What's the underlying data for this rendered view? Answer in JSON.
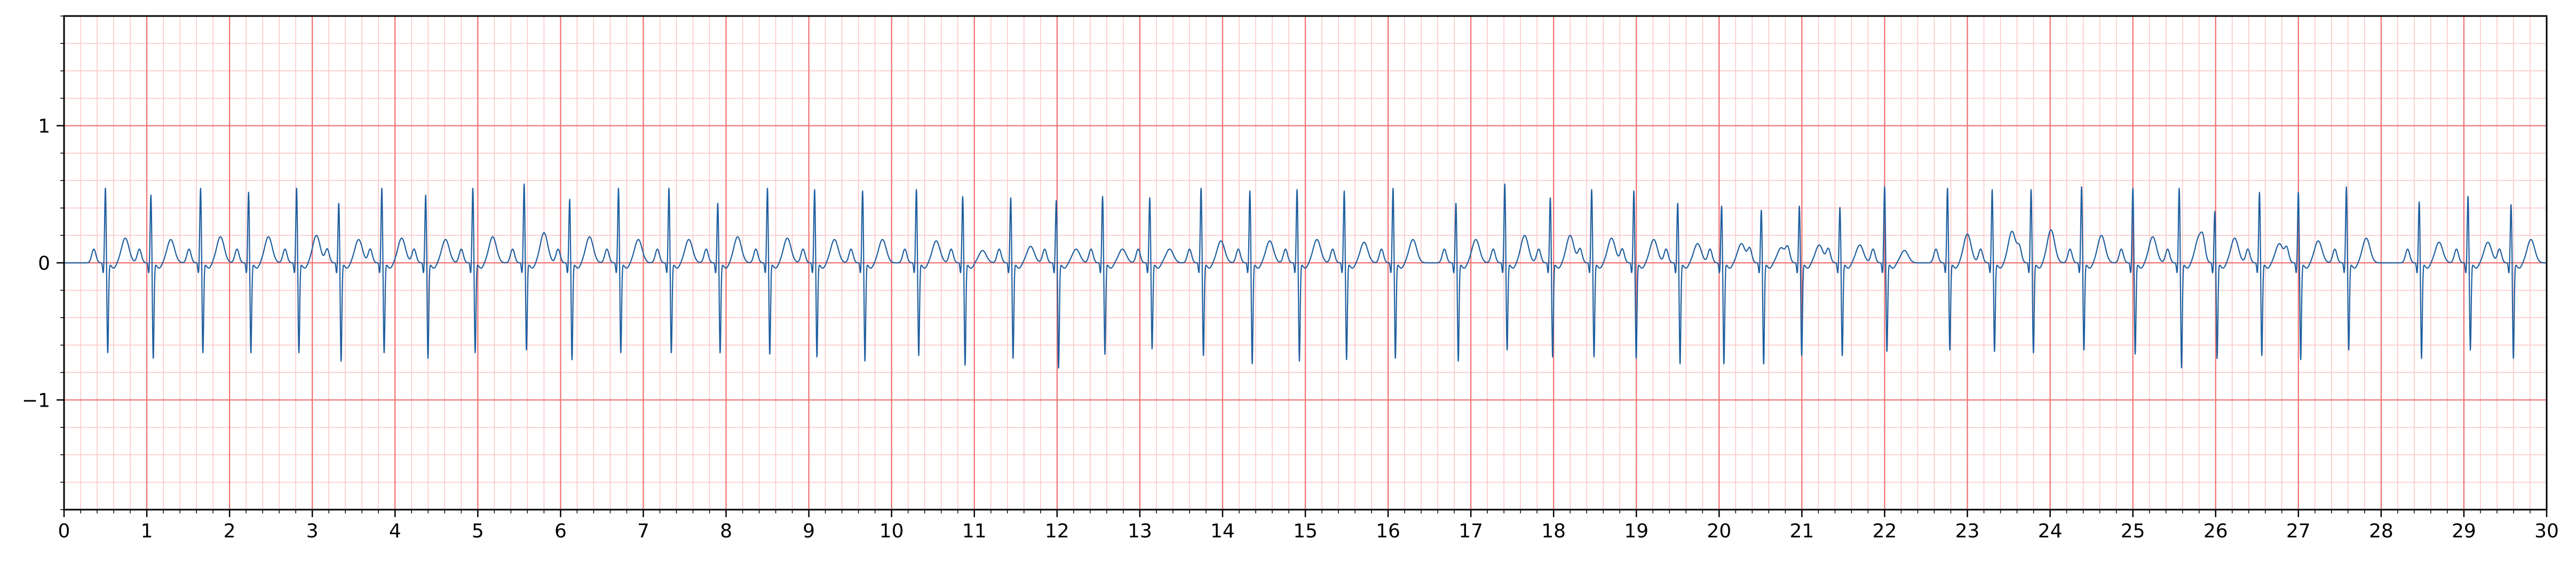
{
  "colors": {
    "major_grid": "#f07070",
    "minor_grid": "#fcc4c4",
    "trace": "#1f5f9f",
    "axis": "#000000",
    "background": "#ffffff"
  },
  "chart_data": {
    "type": "line",
    "title": "",
    "xlabel": "",
    "ylabel": "",
    "xlim": [
      0,
      30
    ],
    "ylim": [
      -1.8,
      1.8
    ],
    "grid": true,
    "major_grid_x": 1,
    "major_grid_y": 1,
    "minor_grid_x": 0.2,
    "minor_grid_y": 0.2,
    "x_ticks": [
      0,
      1,
      2,
      3,
      4,
      5,
      6,
      7,
      8,
      9,
      10,
      11,
      12,
      13,
      14,
      15,
      16,
      17,
      18,
      19,
      20,
      21,
      22,
      23,
      24,
      25,
      26,
      27,
      28,
      29,
      30
    ],
    "x_tick_labels": [
      "0",
      "1",
      "2",
      "3",
      "4",
      "5",
      "6",
      "7",
      "8",
      "9",
      "10",
      "11",
      "12",
      "13",
      "14",
      "15",
      "16",
      "17",
      "18",
      "19",
      "20",
      "21",
      "22",
      "23",
      "24",
      "25",
      "26",
      "27",
      "28",
      "29",
      "30"
    ],
    "y_ticks": [
      -1,
      0,
      1
    ],
    "y_tick_labels": [
      "−1",
      "0",
      "1"
    ],
    "series": [
      {
        "beat_times_s": [
          0.5,
          1.05,
          1.65,
          2.23,
          2.81,
          3.32,
          3.84,
          4.37,
          4.94,
          5.56,
          6.11,
          6.7,
          7.31,
          7.9,
          8.5,
          9.07,
          9.65,
          10.3,
          10.86,
          11.44,
          11.99,
          12.55,
          13.12,
          13.74,
          14.33,
          14.9,
          15.47,
          16.06,
          16.82,
          17.41,
          17.96,
          18.46,
          18.97,
          19.5,
          20.03,
          20.51,
          20.97,
          21.46,
          22.0,
          22.76,
          23.3,
          23.77,
          24.38,
          25.0,
          25.56,
          25.99,
          26.53,
          27.0,
          27.58,
          28.46,
          29.05,
          29.57
        ],
        "r_peak_mv": [
          0.55,
          0.5,
          0.55,
          0.52,
          0.55,
          0.44,
          0.55,
          0.5,
          0.55,
          0.58,
          0.47,
          0.55,
          0.55,
          0.44,
          0.55,
          0.54,
          0.53,
          0.54,
          0.49,
          0.48,
          0.46,
          0.49,
          0.48,
          0.55,
          0.53,
          0.54,
          0.53,
          0.55,
          0.44,
          0.58,
          0.48,
          0.54,
          0.53,
          0.44,
          0.42,
          0.39,
          0.42,
          0.41,
          0.56,
          0.55,
          0.54,
          0.54,
          0.56,
          0.55,
          0.55,
          0.38,
          0.52,
          0.52,
          0.56,
          0.45,
          0.49,
          0.43
        ],
        "s_trough_mv": [
          -0.66,
          -0.7,
          -0.66,
          -0.66,
          -0.66,
          -0.72,
          -0.66,
          -0.7,
          -0.66,
          -0.64,
          -0.71,
          -0.66,
          -0.66,
          -0.66,
          -0.67,
          -0.69,
          -0.72,
          -0.68,
          -0.75,
          -0.7,
          -0.77,
          -0.67,
          -0.63,
          -0.68,
          -0.74,
          -0.72,
          -0.71,
          -0.7,
          -0.72,
          -0.64,
          -0.69,
          -0.69,
          -0.7,
          -0.74,
          -0.74,
          -0.74,
          -0.68,
          -0.68,
          -0.65,
          -0.64,
          -0.65,
          -0.66,
          -0.64,
          -0.67,
          -0.77,
          -0.7,
          -0.68,
          -0.71,
          -0.64,
          -0.7,
          -0.64,
          -0.7
        ],
        "t_wave_mv": [
          0.18,
          0.17,
          0.19,
          0.19,
          0.2,
          0.17,
          0.18,
          0.17,
          0.19,
          0.22,
          0.19,
          0.17,
          0.17,
          0.19,
          0.18,
          0.17,
          0.17,
          0.16,
          0.09,
          0.12,
          0.1,
          0.1,
          0.1,
          0.16,
          0.16,
          0.17,
          0.15,
          0.17,
          0.17,
          0.2,
          0.2,
          0.18,
          0.17,
          0.14,
          0.14,
          0.11,
          0.13,
          0.13,
          0.09,
          0.21,
          0.23,
          0.24,
          0.2,
          0.19,
          0.19,
          0.18,
          0.14,
          0.16,
          0.18,
          0.15,
          0.15,
          0.17
        ]
      }
    ]
  }
}
